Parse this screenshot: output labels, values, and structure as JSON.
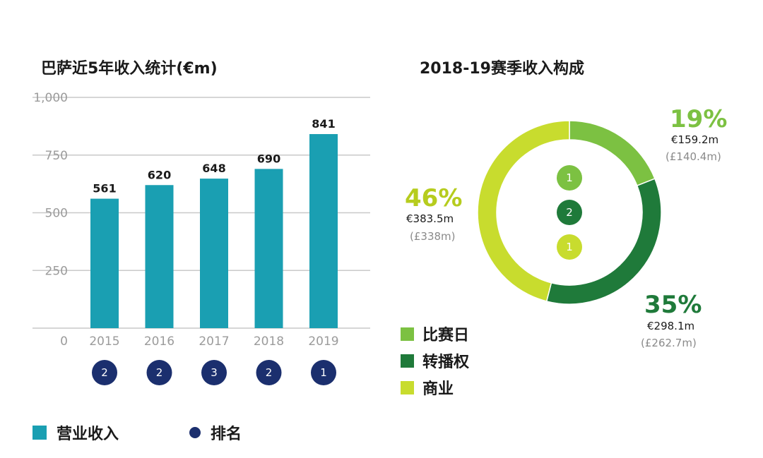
{
  "chart_data": [
    {
      "type": "bar",
      "title": "巴萨近5年收入统计(€m)",
      "categories": [
        "2015",
        "2016",
        "2017",
        "2018",
        "2019"
      ],
      "values": [
        561,
        620,
        648,
        690,
        841
      ],
      "ranks": [
        "2",
        "2",
        "3",
        "2",
        "1"
      ],
      "ylim": [
        0,
        1000
      ],
      "yticks": [
        0,
        250,
        500,
        750,
        1000
      ],
      "ytick_labels": [
        "0",
        "250",
        "500",
        "750",
        "1,000"
      ],
      "grid": true,
      "legend": [
        {
          "label": "营业收入",
          "color": "#1a9fb2",
          "marker": "square"
        },
        {
          "label": "排名",
          "color": "#1b2f6e",
          "marker": "circle"
        }
      ]
    },
    {
      "type": "pie",
      "title": "2018-19赛季收入构成",
      "slices": [
        {
          "name": "比赛日",
          "percent_label": "19%",
          "value": 19,
          "eur": "€159.2m",
          "gbp": "(£140.4m)",
          "color": "#7cc142",
          "rank": "1",
          "rank_color": "#7cc142"
        },
        {
          "name": "转播权",
          "percent_label": "35%",
          "value": 35,
          "eur": "€298.1m",
          "gbp": "(£262.7m)",
          "color": "#1f7a3a",
          "rank": "2",
          "rank_color": "#1f7a3a"
        },
        {
          "name": "商业",
          "percent_label": "46%",
          "value": 46,
          "eur": "€383.5m",
          "gbp": "(£338m)",
          "color": "#c8dc2e",
          "rank": "1",
          "rank_color": "#c8dc2e"
        }
      ],
      "percent_colors": [
        "#7cc142",
        "#1f7a3a",
        "#b6cc1e"
      ]
    }
  ]
}
